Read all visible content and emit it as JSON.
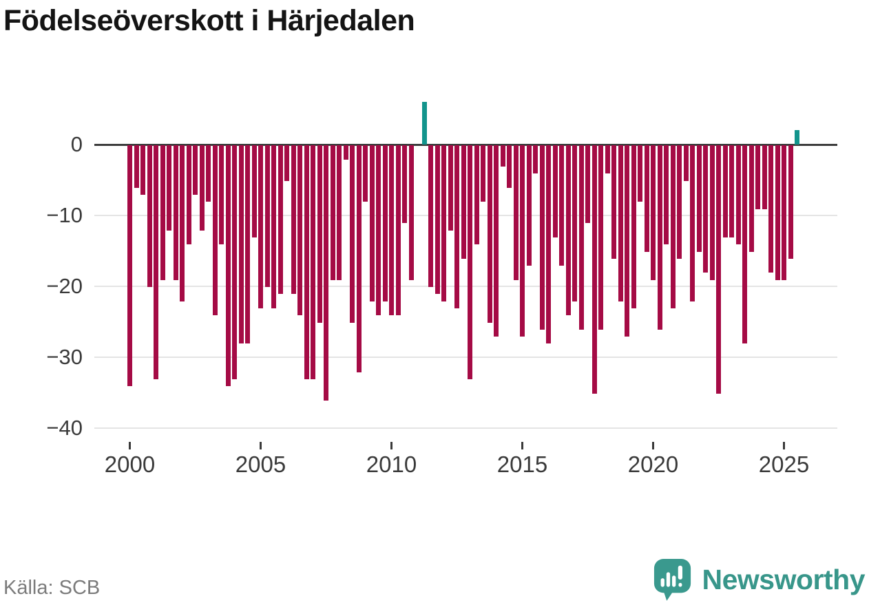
{
  "page": {
    "title": "Födelseöverskott i Härjedalen",
    "source": "Källa: SCB",
    "brand": "Newsworthy"
  },
  "colors": {
    "bar_negative": "#a50b45",
    "bar_positive": "#12948c",
    "zero_line": "#3d3d3d",
    "gridline": "#e4e4e4",
    "axis_text": "#3a3a3a",
    "title_text": "#141414",
    "source_text": "#7b7b7b",
    "brand_teal": "#38968a"
  },
  "chart_data": {
    "type": "bar",
    "title": "Födelseöverskott i Härjedalen",
    "frequency": "quarterly",
    "x_start": "2000-Q1",
    "x_end": "2025-Q3",
    "xlabel": "",
    "ylabel": "",
    "ylim": [
      -42,
      7
    ],
    "grid": "horizontal",
    "y_ticks": [
      0,
      -10,
      -20,
      -30,
      -40
    ],
    "y_tick_labels": [
      "0",
      "−10",
      "−20",
      "−30",
      "−40"
    ],
    "x_tick_years": [
      2000,
      2005,
      2010,
      2015,
      2020,
      2025
    ],
    "x_tick_labels": [
      "2000",
      "2005",
      "2010",
      "2015",
      "2020",
      "2025"
    ],
    "values": [
      -34,
      -6,
      -7,
      -20,
      -33,
      -19,
      -12,
      -19,
      -22,
      -14,
      -7,
      -12,
      -8,
      -24,
      -14,
      -34,
      -33,
      -28,
      -28,
      -13,
      -23,
      -20,
      -23,
      -21,
      -5,
      -21,
      -24,
      -33,
      -33,
      -25,
      -36,
      -19,
      -19,
      -2,
      -25,
      -32,
      -8,
      -22,
      -24,
      -22,
      -24,
      -24,
      -11,
      -19,
      0,
      6,
      -20,
      -21,
      -22,
      -12,
      -23,
      -16,
      -33,
      -14,
      -8,
      -25,
      -27,
      -3,
      -6,
      -19,
      -27,
      -17,
      -4,
      -26,
      -28,
      -13,
      -17,
      -24,
      -22,
      -26,
      -11,
      -35,
      -26,
      -4,
      -16,
      -22,
      -27,
      -23,
      -8,
      -15,
      -19,
      -26,
      -14,
      -23,
      -16,
      -5,
      -22,
      -15,
      -18,
      -19,
      -35,
      -13,
      -13,
      -14,
      -28,
      -15,
      -9,
      -9,
      -18,
      -19,
      -19,
      -16,
      2
    ]
  }
}
